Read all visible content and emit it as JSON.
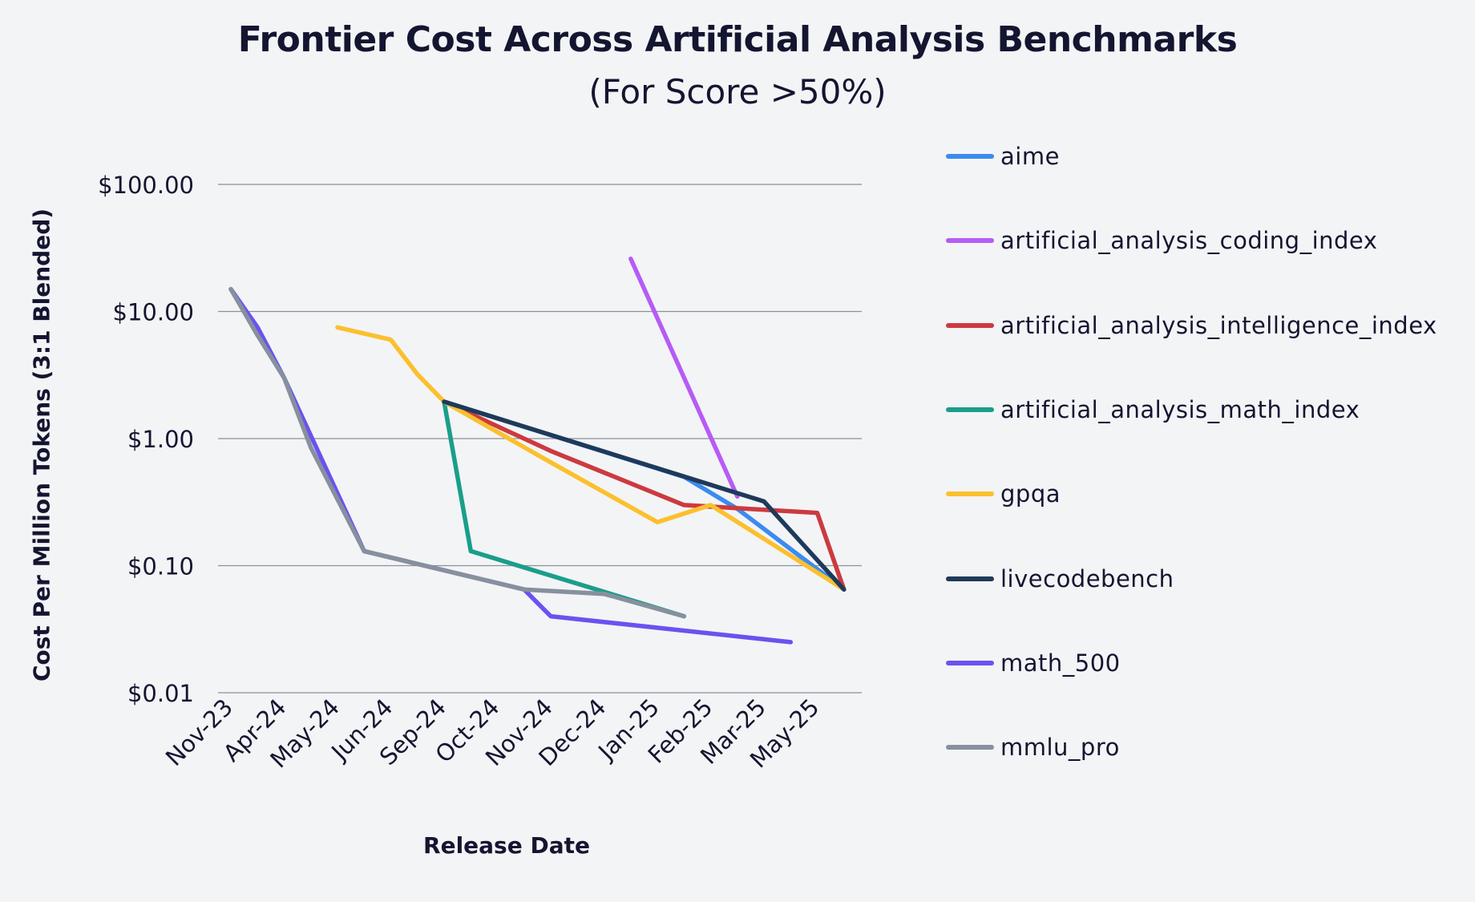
{
  "chart_data": {
    "type": "line",
    "title": "Frontier Cost Across Artificial Analysis Benchmarks",
    "subtitle": "(For Score >50%)",
    "xlabel": "Release Date",
    "ylabel": "Cost Per Million Tokens (3:1 Blended)",
    "y_scale": "log",
    "ylim": [
      0.01,
      100
    ],
    "y_ticks": [
      100,
      10,
      1,
      0.1,
      0.01
    ],
    "y_tick_labels": [
      "$100.00",
      "$10.00",
      "$1.00",
      "$0.10",
      "$0.01"
    ],
    "x_tick_labels": [
      "Nov-23",
      "Apr-24",
      "May-24",
      "Jun-24",
      "Sep-24",
      "Oct-24",
      "Nov-24",
      "Dec-24",
      "Jan-25",
      "Feb-25",
      "Mar-25",
      "May-25"
    ],
    "grid": "horizontal",
    "legend_position": "right",
    "series": [
      {
        "name": "aime",
        "color": "#3b8bef",
        "points": [
          [
            4,
            1.95
          ],
          [
            8.5,
            0.5
          ],
          [
            9.5,
            0.28
          ],
          [
            11.5,
            0.065
          ]
        ]
      },
      {
        "name": "artificial_analysis_coding_index",
        "color": "#b65cf5",
        "points": [
          [
            7.5,
            26
          ],
          [
            9.5,
            0.35
          ]
        ]
      },
      {
        "name": "artificial_analysis_intelligence_index",
        "color": "#cc3a3f",
        "points": [
          [
            4,
            1.95
          ],
          [
            6,
            0.8
          ],
          [
            8.5,
            0.3
          ],
          [
            11,
            0.26
          ],
          [
            11.5,
            0.065
          ]
        ]
      },
      {
        "name": "artificial_analysis_math_index",
        "color": "#1a9e8a",
        "points": [
          [
            4,
            1.95
          ],
          [
            4.5,
            0.13
          ],
          [
            8.5,
            0.04
          ]
        ]
      },
      {
        "name": "gpqa",
        "color": "#fbc02d",
        "points": [
          [
            2,
            7.5
          ],
          [
            3,
            6
          ],
          [
            3.5,
            3.2
          ],
          [
            4,
            1.95
          ],
          [
            6,
            0.65
          ],
          [
            8,
            0.22
          ],
          [
            9,
            0.3
          ],
          [
            11.5,
            0.065
          ]
        ]
      },
      {
        "name": "livecodebench",
        "color": "#1e3a5a",
        "points": [
          [
            4,
            1.95
          ],
          [
            10,
            0.32
          ],
          [
            11.5,
            0.065
          ]
        ]
      },
      {
        "name": "math_500",
        "color": "#6a52f0",
        "points": [
          [
            0,
            15
          ],
          [
            0.5,
            7.5
          ],
          [
            1,
            3
          ],
          [
            2.5,
            0.13
          ],
          [
            5.5,
            0.065
          ],
          [
            6,
            0.04
          ],
          [
            10.5,
            0.025
          ]
        ]
      },
      {
        "name": "mmlu_pro",
        "color": "#87909d",
        "points": [
          [
            0,
            15
          ],
          [
            0.5,
            6.5
          ],
          [
            1,
            3
          ],
          [
            1.5,
            0.85
          ],
          [
            2.5,
            0.13
          ],
          [
            5.5,
            0.065
          ],
          [
            7,
            0.06
          ],
          [
            8.5,
            0.04
          ]
        ]
      }
    ]
  }
}
